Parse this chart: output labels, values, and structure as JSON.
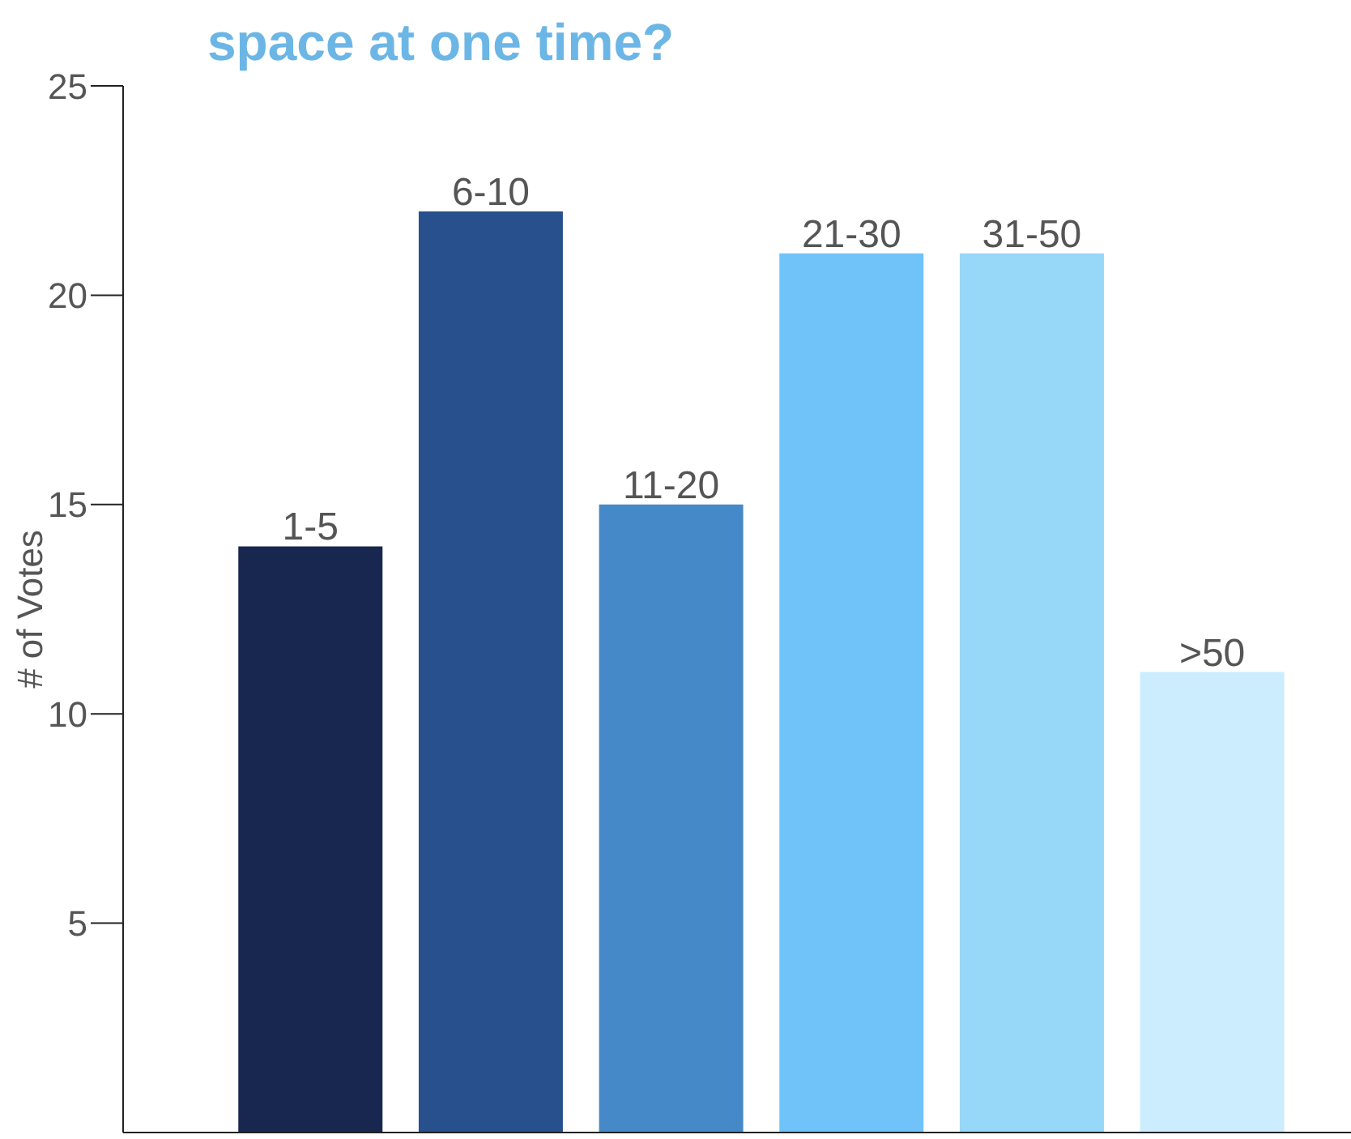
{
  "chart_data": {
    "type": "bar",
    "title": "space at one time?",
    "ylabel": "# of Votes",
    "categories": [
      "1-5",
      "6-10",
      "11-20",
      "21-30",
      "31-50",
      ">50"
    ],
    "values": [
      14,
      22,
      15,
      21,
      21,
      11
    ],
    "colors": [
      "#18274f",
      "#27508c",
      "#4689c8",
      "#6fc3f8",
      "#97d7f8",
      "#cbedfd"
    ],
    "ylim": [
      0,
      25
    ],
    "yticks": [
      5,
      10,
      15,
      20,
      25
    ],
    "grid": false,
    "tick_labels": "y"
  }
}
